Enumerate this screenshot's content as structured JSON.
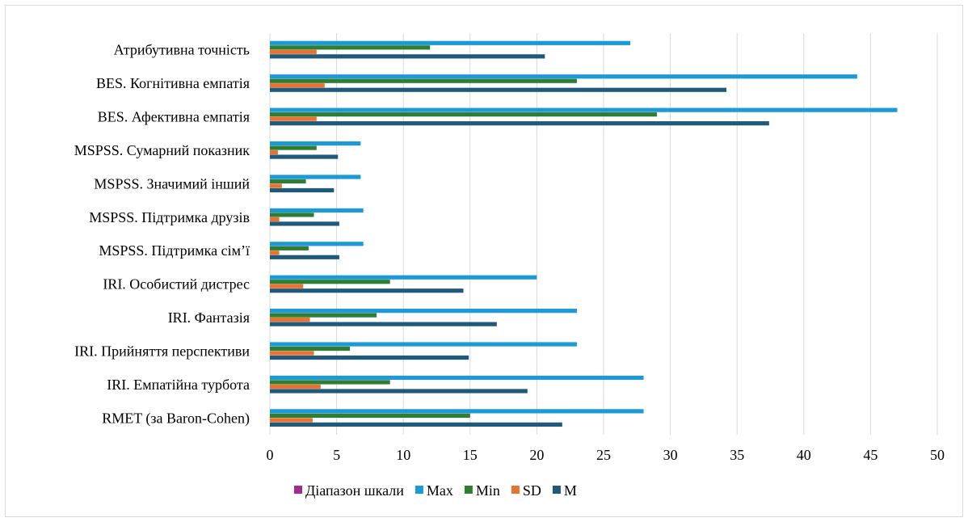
{
  "chart_data": {
    "type": "bar",
    "orientation": "horizontal",
    "title": "",
    "xlabel": "",
    "ylabel": "",
    "xlim": [
      0,
      50
    ],
    "x_ticks": [
      0,
      5,
      10,
      15,
      20,
      25,
      30,
      35,
      40,
      45,
      50
    ],
    "grid": "vertical",
    "legend_position": "bottom",
    "categories": [
      "Атрибутивна точність",
      "BES. Когнітивна емпатія",
      "BES. Афективна емпатія",
      "MSPSS. Сумарний показник",
      "MSPSS. Значимий інший",
      "MSPSS. Підтримка друзів",
      "MSPSS. Підтримка сім’ї",
      "IRI. Особистий дистрес",
      "IRI. Фантазія",
      "IRI. Прийняття перспективи",
      "IRI. Емпатійна турбота",
      "RMET (за Baron-Cohen)"
    ],
    "series": [
      {
        "name": "Діапазон шкали",
        "color": "#a02b93",
        "values": [
          0,
          0,
          0,
          0,
          0,
          0,
          0,
          0,
          0,
          0,
          0,
          0
        ]
      },
      {
        "name": "Max",
        "color": "#1b9ad6",
        "values": [
          27,
          44,
          47,
          6.8,
          6.8,
          7,
          7,
          20,
          23,
          23,
          28,
          28
        ]
      },
      {
        "name": "Min",
        "color": "#2e7d32",
        "values": [
          12,
          23,
          29,
          3.5,
          2.7,
          3.3,
          2.9,
          9,
          8,
          6,
          9,
          15
        ]
      },
      {
        "name": "SD",
        "color": "#e97132",
        "values": [
          3.5,
          4.1,
          3.5,
          0.6,
          0.9,
          0.7,
          0.7,
          2.5,
          3,
          3.3,
          3.8,
          3.2
        ]
      },
      {
        "name": "M",
        "color": "#1f5a7a",
        "values": [
          20.6,
          34.2,
          37.4,
          5.1,
          4.8,
          5.2,
          5.2,
          14.5,
          17,
          14.9,
          19.3,
          21.9
        ]
      }
    ]
  }
}
